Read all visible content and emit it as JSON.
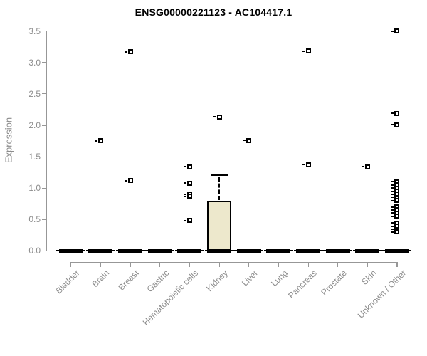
{
  "page": {
    "background": "#ffffff"
  },
  "chart_data": {
    "type": "boxplot",
    "title": "ENSG00000221123 - AC104417.1",
    "ylabel": "Expression",
    "xlabel": "",
    "ylim": [
      0,
      3.5
    ],
    "yticks": [
      "0.0",
      "0.5",
      "1.0",
      "1.5",
      "2.0",
      "2.5",
      "3.0",
      "3.5"
    ],
    "grid": false,
    "legend": false,
    "categories": [
      "Bladder",
      "Brain",
      "Breast",
      "Gastric",
      "Hematopoietic cells",
      "Kidney",
      "Liver",
      "Lung",
      "Pancreas",
      "Prostate",
      "Skin",
      "Unknown / Other"
    ],
    "boxes": [
      {
        "category": "Bladder",
        "q1": 0,
        "median": 0,
        "q3": 0,
        "whisker_low": 0,
        "whisker_high": 0,
        "outliers": []
      },
      {
        "category": "Brain",
        "q1": 0,
        "median": 0,
        "q3": 0,
        "whisker_low": 0,
        "whisker_high": 0,
        "outliers": [
          1.75
        ]
      },
      {
        "category": "Breast",
        "q1": 0,
        "median": 0,
        "q3": 0,
        "whisker_low": 0,
        "whisker_high": 0,
        "outliers": [
          3.17,
          1.12
        ]
      },
      {
        "category": "Gastric",
        "q1": 0,
        "median": 0,
        "q3": 0,
        "whisker_low": 0,
        "whisker_high": 0,
        "outliers": []
      },
      {
        "category": "Hematopoietic cells",
        "q1": 0,
        "median": 0,
        "q3": 0,
        "whisker_low": 0,
        "whisker_high": 0,
        "outliers": [
          1.34,
          1.08,
          0.9,
          0.87,
          0.48
        ]
      },
      {
        "category": "Kidney",
        "q1": 0,
        "median": 0,
        "q3": 0.8,
        "whisker_low": 0,
        "whisker_high": 1.2,
        "outliers": [
          2.13
        ]
      },
      {
        "category": "Liver",
        "q1": 0,
        "median": 0,
        "q3": 0,
        "whisker_low": 0,
        "whisker_high": 0,
        "outliers": [
          1.76
        ]
      },
      {
        "category": "Lung",
        "q1": 0,
        "median": 0,
        "q3": 0,
        "whisker_low": 0,
        "whisker_high": 0,
        "outliers": []
      },
      {
        "category": "Pancreas",
        "q1": 0,
        "median": 0,
        "q3": 0,
        "whisker_low": 0,
        "whisker_high": 0,
        "outliers": [
          3.18,
          1.37
        ]
      },
      {
        "category": "Prostate",
        "q1": 0,
        "median": 0,
        "q3": 0,
        "whisker_low": 0,
        "whisker_high": 0,
        "outliers": []
      },
      {
        "category": "Skin",
        "q1": 0,
        "median": 0,
        "q3": 0,
        "whisker_low": 0,
        "whisker_high": 0,
        "outliers": [
          1.34
        ]
      },
      {
        "category": "Unknown / Other",
        "q1": 0,
        "median": 0,
        "q3": 0,
        "whisker_low": 0,
        "whisker_high": 0,
        "outliers": [
          3.5,
          2.19,
          2.01,
          1.1,
          1.05,
          1.0,
          0.95,
          0.9,
          0.85,
          0.8,
          0.7,
          0.65,
          0.6,
          0.55,
          0.44,
          0.39,
          0.34,
          0.3
        ]
      }
    ],
    "colors": {
      "box_fill": "#EDE8CC",
      "box_border": "#000000",
      "median": "#000000",
      "outlier_border": "#000000",
      "axis": "#979797",
      "tick_text": "#8C8C8C",
      "title_text": "#000000"
    }
  }
}
